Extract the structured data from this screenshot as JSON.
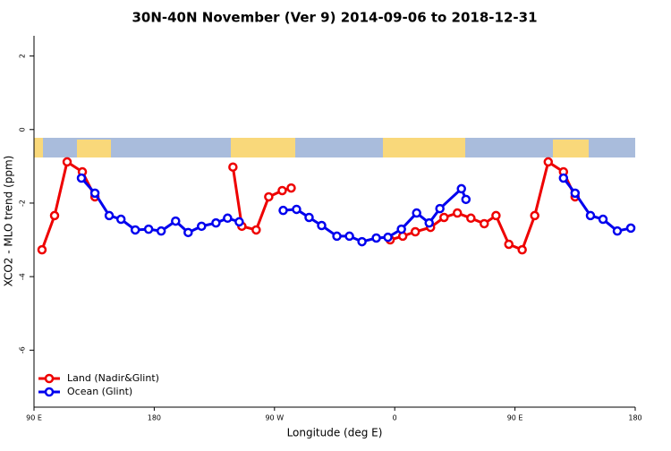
{
  "chart_data": {
    "type": "line",
    "title": "30N-40N November (Ver 9)   2014-09-06 to 2018-12-31",
    "x_label": "Longitude (deg E)",
    "y_label": "XCO2 - MLO trend (ppm)",
    "xlim": [
      90,
      540
    ],
    "ylim": [
      -7.55,
      2.55
    ],
    "xticks": [
      {
        "value": 90,
        "label": "90 E"
      },
      180,
      {
        "value": 270,
        "label": "90 W"
      },
      {
        "value": 360,
        "label": "0"
      },
      {
        "value": 450,
        "label": "90 E"
      },
      {
        "value": 540,
        "label": "180"
      }
    ],
    "yticks": [
      -6,
      -4,
      -2,
      0,
      2
    ],
    "legend": "bottom-left",
    "series": [
      {
        "name": "Land (Nadir&Glint)",
        "color": "#ee0000",
        "x": [
          96,
          105.4,
          114.8,
          126.2,
          135.6,
          null,
          238.9,
          245.6,
          256.3,
          265.7,
          275.8,
          282.5,
          null,
          356.6,
          366,
          375.4,
          386.8,
          396.9,
          406.9,
          417,
          427,
          435.8,
          445.4,
          455.4,
          464.8,
          474.9,
          486.3,
          495
        ],
        "values": [
          -3.27,
          -2.34,
          -0.88,
          -1.15,
          -1.83,
          null,
          -1.02,
          -2.63,
          -2.73,
          -1.83,
          -1.66,
          -1.59,
          null,
          -3.0,
          -2.9,
          -2.78,
          -2.66,
          -2.39,
          -2.27,
          -2.41,
          -2.56,
          -2.34,
          -3.12,
          -3.27,
          -2.34,
          -0.88,
          -1.15,
          -1.83
        ]
      },
      {
        "name": "Ocean (Glint)",
        "color": "#0000ee",
        "x": [
          125.5,
          135.6,
          146.3,
          155.1,
          165.8,
          175.8,
          185.2,
          196,
          205.4,
          215.4,
          226.2,
          234.9,
          243.6,
          null,
          276.5,
          286.5,
          295.9,
          305.3,
          316.7,
          326.1,
          335.5,
          346.2,
          354.9,
          365,
          376.4,
          385.8,
          393.8,
          409.9,
          413.3,
          null,
          486.3,
          495,
          506.5,
          515.9,
          526.6,
          536.7
        ],
        "values": [
          -1.32,
          -1.73,
          -2.34,
          -2.44,
          -2.73,
          -2.71,
          -2.76,
          -2.49,
          -2.8,
          -2.63,
          -2.54,
          -2.41,
          -2.51,
          null,
          -2.2,
          -2.17,
          -2.39,
          -2.61,
          -2.9,
          -2.9,
          -3.05,
          -2.95,
          -2.93,
          -2.71,
          -2.27,
          -2.54,
          -2.15,
          -1.61,
          -1.9,
          null,
          -1.32,
          -1.73,
          -2.34,
          -2.44,
          -2.76,
          -2.68
        ]
      }
    ]
  }
}
